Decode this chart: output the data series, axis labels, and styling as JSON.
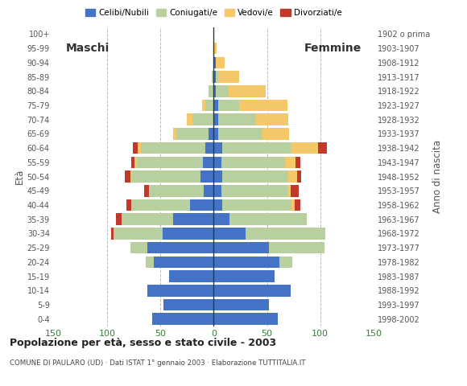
{
  "age_groups": [
    "0-4",
    "5-9",
    "10-14",
    "15-19",
    "20-24",
    "25-29",
    "30-34",
    "35-39",
    "40-44",
    "45-49",
    "50-54",
    "55-59",
    "60-64",
    "65-69",
    "70-74",
    "75-79",
    "80-84",
    "85-89",
    "90-94",
    "95-99",
    "100+"
  ],
  "birth_years": [
    "1998-2002",
    "1993-1997",
    "1988-1992",
    "1983-1987",
    "1978-1982",
    "1973-1977",
    "1968-1972",
    "1963-1967",
    "1958-1962",
    "1953-1957",
    "1948-1952",
    "1943-1947",
    "1938-1942",
    "1933-1937",
    "1928-1932",
    "1923-1927",
    "1918-1922",
    "1913-1917",
    "1908-1912",
    "1903-1907",
    "1902 o prima"
  ],
  "males": {
    "celibe": [
      58,
      47,
      62,
      42,
      56,
      62,
      48,
      38,
      22,
      9,
      12,
      10,
      8,
      5,
      0,
      0,
      0,
      0,
      0,
      0,
      0
    ],
    "coniugato": [
      0,
      0,
      0,
      0,
      8,
      16,
      46,
      48,
      55,
      52,
      65,
      62,
      60,
      30,
      20,
      8,
      5,
      2,
      0,
      0,
      0
    ],
    "vedovo": [
      0,
      0,
      0,
      0,
      0,
      0,
      0,
      0,
      0,
      0,
      1,
      2,
      3,
      3,
      5,
      3,
      0,
      0,
      0,
      0,
      0
    ],
    "divorziato": [
      0,
      0,
      0,
      0,
      0,
      0,
      2,
      6,
      5,
      4,
      5,
      3,
      5,
      0,
      0,
      0,
      0,
      0,
      0,
      0,
      0
    ]
  },
  "females": {
    "nubile": [
      60,
      52,
      72,
      57,
      62,
      52,
      30,
      15,
      8,
      7,
      8,
      7,
      8,
      4,
      4,
      4,
      2,
      2,
      2,
      0,
      0
    ],
    "coniugata": [
      0,
      0,
      0,
      0,
      12,
      52,
      75,
      72,
      65,
      62,
      62,
      60,
      65,
      42,
      36,
      20,
      12,
      2,
      0,
      0,
      0
    ],
    "vedova": [
      0,
      0,
      0,
      0,
      0,
      0,
      0,
      0,
      3,
      3,
      8,
      10,
      25,
      25,
      30,
      45,
      35,
      20,
      8,
      3,
      0
    ],
    "divorziata": [
      0,
      0,
      0,
      0,
      0,
      0,
      0,
      0,
      5,
      8,
      4,
      4,
      8,
      0,
      0,
      0,
      0,
      0,
      0,
      0,
      0
    ]
  },
  "colors": {
    "celibe_nubile": "#4472c4",
    "coniugato_coniugata": "#b8cfa0",
    "vedovo_vedova": "#f5c96a",
    "divorziato_divorziata": "#c0392b"
  },
  "title": "Popolazione per età, sesso e stato civile - 2003",
  "subtitle": "COMUNE DI PAULARO (UD) · Dati ISTAT 1° gennaio 2003 · Elaborazione TUTTITALIA.IT",
  "xlabel_left": "Maschi",
  "xlabel_right": "Femmine",
  "xlim": 150,
  "legend_labels": [
    "Celibi/Nubili",
    "Coniugati/e",
    "Vedovi/e",
    "Divorziati/e"
  ],
  "ylabel_left": "Età",
  "ylabel_right": "Anno di nascita",
  "background_color": "#ffffff",
  "grid_color": "#bbbbbb"
}
